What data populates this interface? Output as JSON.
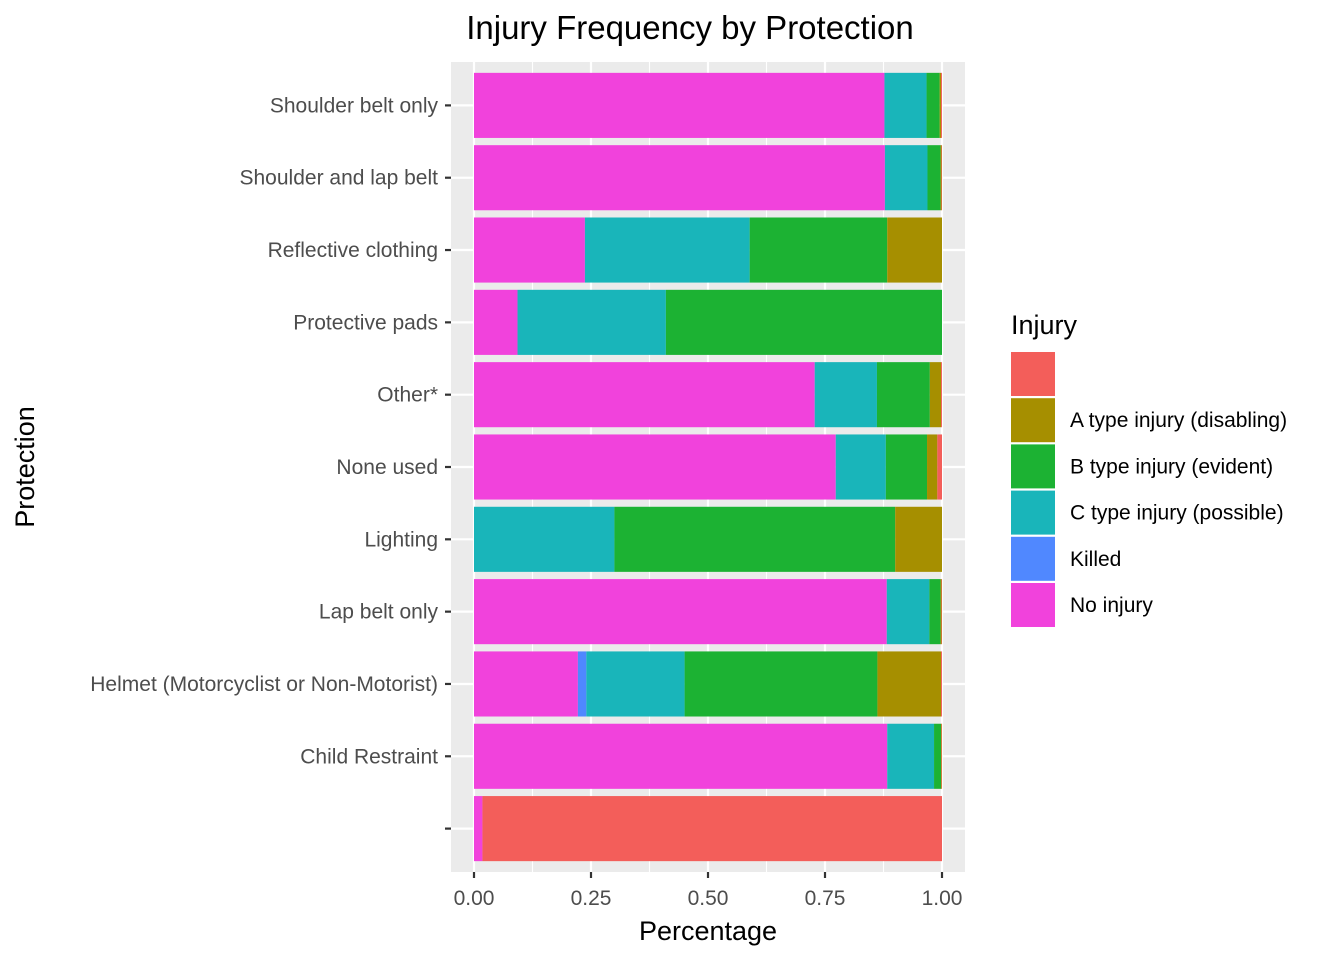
{
  "chart_data": {
    "type": "bar",
    "orientation": "horizontal",
    "stacked": true,
    "title": "Injury Frequency by Protection",
    "xlabel": "Percentage",
    "ylabel": "Protection",
    "xlim": [
      0,
      1
    ],
    "x_ticks": [
      "0.00",
      "0.25",
      "0.50",
      "0.75",
      "1.00"
    ],
    "grid": true,
    "legend_position": "right",
    "legend_title": "Injury",
    "categories": [
      "Shoulder belt only",
      "Shoulder and lap belt",
      "Reflective clothing",
      "Protective pads",
      "Other*",
      "None used",
      "Lighting",
      "Lap belt only",
      "Helmet (Motorcyclist or Non-Motorist)",
      "Child Restraint",
      ""
    ],
    "series": [
      {
        "name": "No injury",
        "color": "#F142DC",
        "values": [
          0.877,
          0.878,
          0.237,
          0.093,
          0.728,
          0.773,
          0.0,
          0.882,
          0.222,
          0.883,
          0.018
        ]
      },
      {
        "name": "Killed",
        "color": "#5088FF",
        "values": [
          0.0,
          0.0,
          0.0,
          0.0,
          0.0,
          0.0,
          0.0,
          0.0,
          0.018,
          0.0,
          0.0
        ]
      },
      {
        "name": "C type injury (possible)",
        "color": "#19B5BA",
        "values": [
          0.09,
          0.091,
          0.352,
          0.317,
          0.133,
          0.107,
          0.3,
          0.091,
          0.21,
          0.1,
          0.0
        ]
      },
      {
        "name": "B type injury (evident)",
        "color": "#1CB233",
        "values": [
          0.028,
          0.028,
          0.294,
          0.59,
          0.113,
          0.088,
          0.6,
          0.024,
          0.412,
          0.015,
          0.0
        ]
      },
      {
        "name": "A type injury (disabling)",
        "color": "#A68F00",
        "values": [
          0.003,
          0.002,
          0.117,
          0.0,
          0.024,
          0.022,
          0.1,
          0.002,
          0.136,
          0.001,
          0.0
        ]
      },
      {
        "name": "",
        "color": "#F35E5A",
        "values": [
          0.002,
          0.001,
          0.0,
          0.0,
          0.002,
          0.01,
          0.0,
          0.001,
          0.002,
          0.001,
          0.982
        ]
      }
    ],
    "legend_order": [
      "",
      "A type injury (disabling)",
      "B type injury (evident)",
      "C type injury (possible)",
      "Killed",
      "No injury"
    ]
  }
}
